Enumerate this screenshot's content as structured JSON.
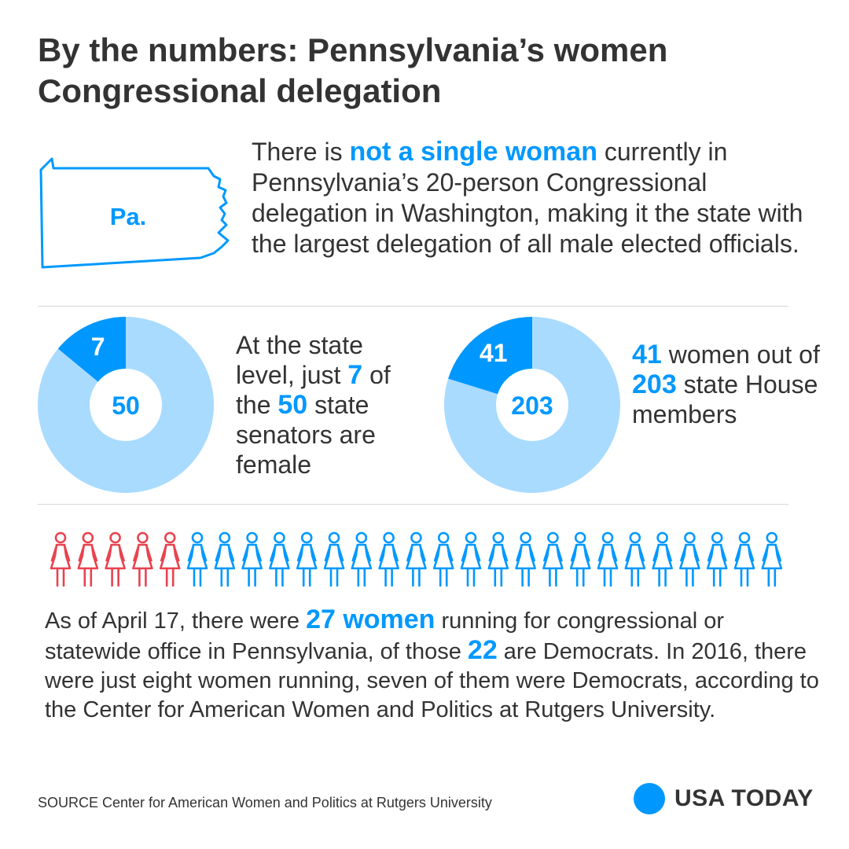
{
  "header": {
    "title_line1": "By the numbers: Pennsylvania’s women",
    "title_line2": "Congressional delegation"
  },
  "intro": {
    "map_label": "Pa.",
    "pre": "There is ",
    "highlight": "not a single woman",
    "post": " currently in Pennsylvania’s 20-person Congressional delegation in Washington, making it the state with the largest delegation of all male elected officials."
  },
  "senate": {
    "t1": "At the state level, just ",
    "t2": " of the ",
    "t3": " state senators are female"
  },
  "house": {
    "t1": " women out of ",
    "t2": " state House members"
  },
  "bottom": {
    "t1": "As of April 17, there were ",
    "h1": "27 women",
    "t2": " running for congressional or statewide office in Pennsylvania, of those ",
    "h2": "22",
    "t3": " are Democrats. In 2016, there were just eight women running, seven of them were Democrats, according to the Center for American Women and Politics at Rutgers University."
  },
  "footer": {
    "source": "SOURCE Center for American Women and Politics at Rutgers University",
    "brand": "USA TODAY"
  },
  "colors": {
    "accent": "#0098ff",
    "light_blue": "#a9dbff",
    "red": "#e8434f",
    "text": "#333333"
  },
  "chart_data": [
    {
      "type": "pie",
      "title": "",
      "total": 50,
      "slices": [
        {
          "label": "7",
          "value": 7,
          "color": "#0098ff"
        },
        {
          "label": "",
          "value": 43,
          "color": "#a9dbff"
        }
      ],
      "center_label": "50"
    },
    {
      "type": "pie",
      "title": "",
      "total": 203,
      "slices": [
        {
          "label": "41",
          "value": 41,
          "color": "#0098ff"
        },
        {
          "label": "",
          "value": 162,
          "color": "#a9dbff"
        }
      ],
      "center_label": "203"
    },
    {
      "type": "pictogram",
      "title": "",
      "categories": [
        "red",
        "blue"
      ],
      "counts": [
        5,
        22
      ],
      "colors": [
        "#e8434f",
        "#0098ff"
      ],
      "total": 27
    }
  ]
}
